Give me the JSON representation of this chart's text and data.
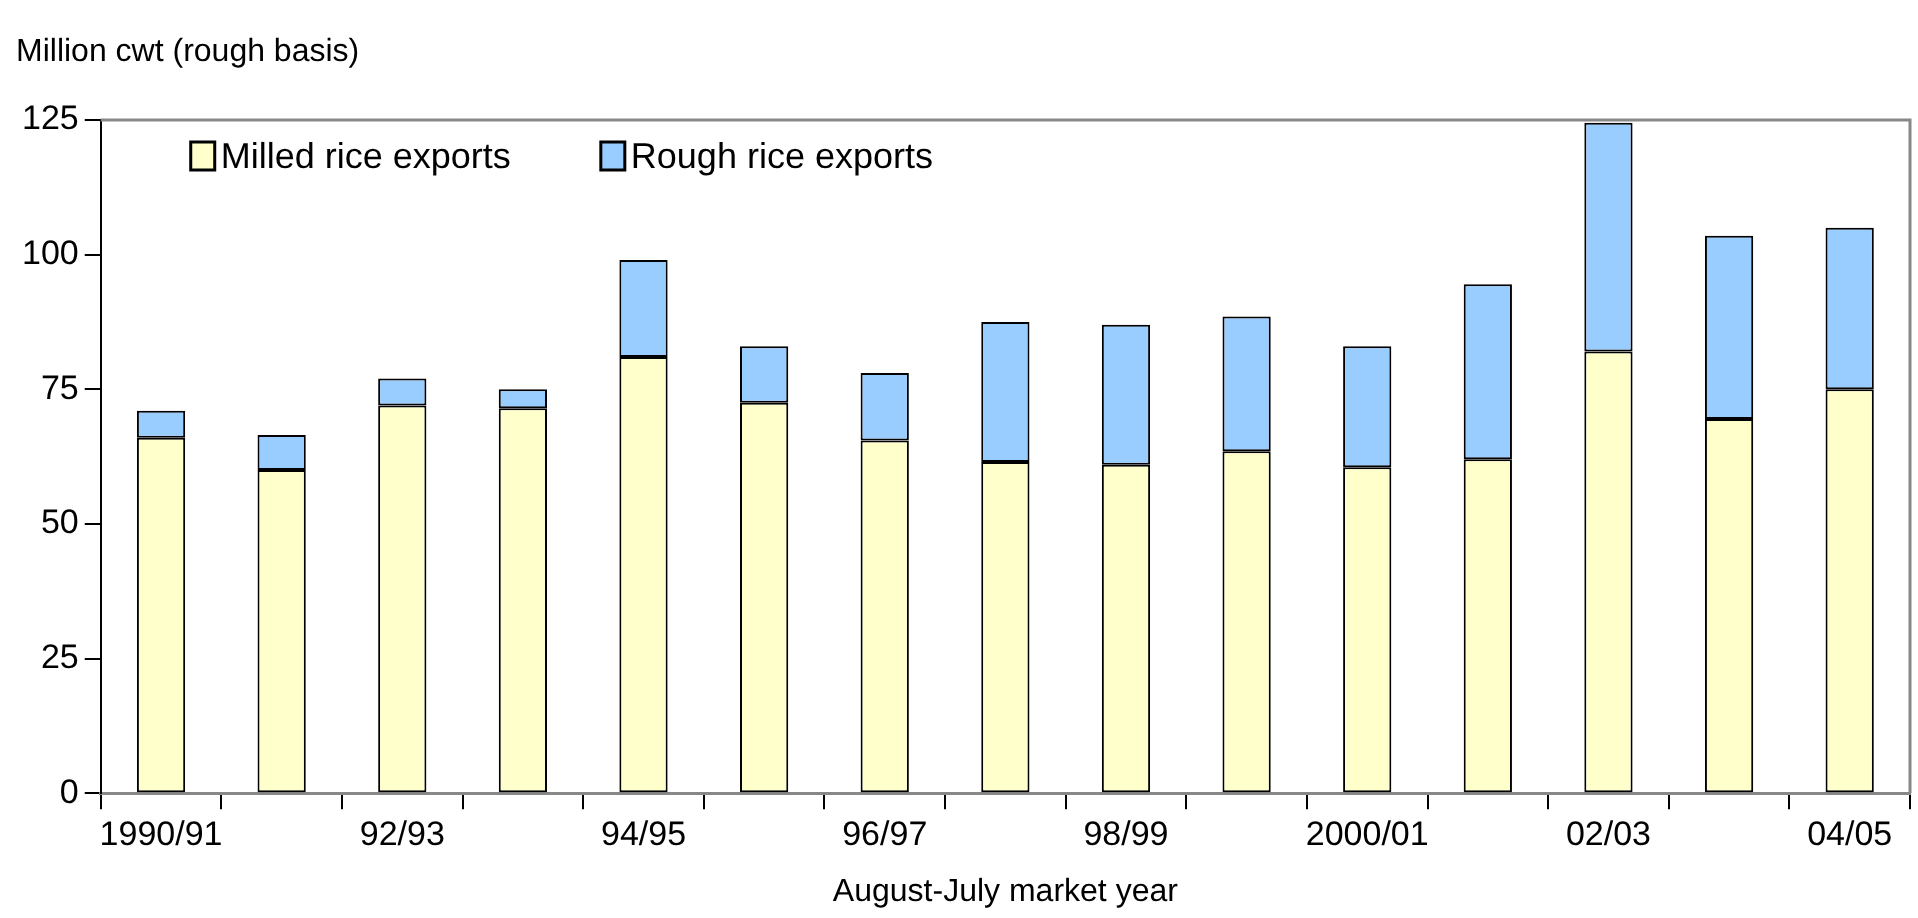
{
  "chart_data": {
    "type": "bar",
    "stacked": true,
    "ylabel": "Million cwt (rough basis)",
    "xlabel": "August-July market year",
    "categories": [
      "1990/91",
      null,
      "92/93",
      null,
      "94/95",
      null,
      "96/97",
      null,
      "98/99",
      null,
      "2000/01",
      null,
      "02/03",
      null,
      "04/05"
    ],
    "series": [
      {
        "name": "Milled rice exports",
        "color": "#ffffcc",
        "values": [
          66,
          60,
          72,
          71.5,
          81,
          72.5,
          65.5,
          61.5,
          61,
          63.5,
          60.5,
          62,
          82,
          69.5,
          75
        ]
      },
      {
        "name": "Rough rice exports",
        "color": "#99ccff",
        "values": [
          5,
          6.5,
          5,
          3.5,
          18,
          10.5,
          12.5,
          26,
          26,
          25,
          22.5,
          32.5,
          42.5,
          34,
          30
        ]
      }
    ],
    "ylim": [
      0,
      125
    ],
    "yticks": [
      0,
      25,
      50,
      75,
      100,
      125
    ],
    "grid": false,
    "legend": "top left"
  }
}
